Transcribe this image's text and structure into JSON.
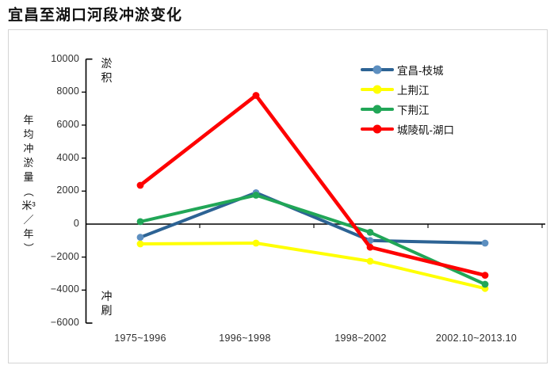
{
  "chart_data": {
    "type": "line",
    "title": "宜昌至湖口河段冲淤变化",
    "categories": [
      "1975~1996",
      "1996~1998",
      "1998~2002",
      "2002.10~2013.10"
    ],
    "series": [
      {
        "name": "宜昌-枝城",
        "color": "#2d6394",
        "marker_color": "#5d8fc0",
        "values": [
          -800,
          1900,
          -1000,
          -1150
        ]
      },
      {
        "name": "上荆江",
        "color": "#ffff00",
        "marker_color": "#ffff00",
        "values": [
          -1200,
          -1150,
          -2250,
          -3900
        ]
      },
      {
        "name": "下荆江",
        "color": "#21a657",
        "marker_color": "#21a657",
        "values": [
          150,
          1750,
          -500,
          -3650
        ]
      },
      {
        "name": "城陵矶-湖口",
        "color": "#fe0000",
        "marker_color": "#fe0000",
        "values": [
          2350,
          7800,
          -1400,
          -3100
        ]
      }
    ],
    "xlabel": "",
    "ylabel": "年均冲淤量（米³／年）",
    "ylim": [
      -6000,
      10000
    ],
    "ytick_step": 2000,
    "yticks": [
      10000,
      8000,
      6000,
      4000,
      2000,
      0,
      -2000,
      -4000,
      -6000
    ],
    "ytick_labels": [
      "10000",
      "8000",
      "6000",
      "4000",
      "2000",
      "0",
      "−2000",
      "−4000",
      "−6000"
    ],
    "annotations": [
      "淤积",
      "冲刷"
    ],
    "legend_position": "top-right",
    "grid": false,
    "axis_color": "#000000",
    "frame_color": "#d4d4d4"
  }
}
